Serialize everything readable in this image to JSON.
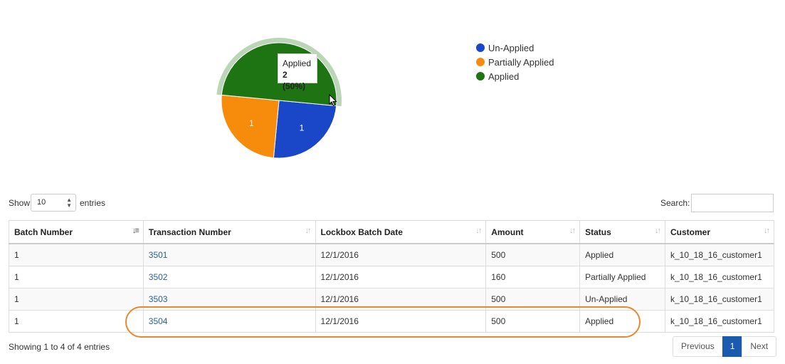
{
  "chart_data": {
    "type": "pie",
    "slices": [
      {
        "label": "Un-Applied",
        "value": 1,
        "display": "1",
        "color": "#1a47c8"
      },
      {
        "label": "Partially Applied",
        "value": 1,
        "display": "1",
        "color": "#f78c0c"
      },
      {
        "label": "Applied",
        "value": 2,
        "display": "",
        "color": "#1e7412",
        "hovered": true
      }
    ],
    "legend_position": "right",
    "tooltip": {
      "label": "Applied",
      "value": "2 (50%)"
    }
  },
  "controls": {
    "show_label": "Show",
    "entries_value": "10",
    "entries_label": "entries",
    "search_label": "Search:",
    "search_value": ""
  },
  "table": {
    "columns": [
      "Batch Number",
      "Transaction Number",
      "Lockbox Batch Date",
      "Amount",
      "Status",
      "Customer"
    ],
    "sort_column": "Batch Number",
    "rows": [
      {
        "batch": "1",
        "txn": "3501",
        "date": "12/1/2016",
        "amount": "500",
        "status": "Applied",
        "customer": "k_10_18_16_customer1"
      },
      {
        "batch": "1",
        "txn": "3502",
        "date": "12/1/2016",
        "amount": "160",
        "status": "Partially Applied",
        "customer": "k_10_18_16_customer1"
      },
      {
        "batch": "1",
        "txn": "3503",
        "date": "12/1/2016",
        "amount": "500",
        "status": "Un-Applied",
        "customer": "k_10_18_16_customer1"
      },
      {
        "batch": "1",
        "txn": "3504",
        "date": "12/1/2016",
        "amount": "500",
        "status": "Applied",
        "customer": "k_10_18_16_customer1",
        "highlighted": true
      }
    ]
  },
  "footer": {
    "info": "Showing 1 to 4 of 4 entries",
    "previous": "Previous",
    "current_page": "1",
    "next": "Next"
  }
}
